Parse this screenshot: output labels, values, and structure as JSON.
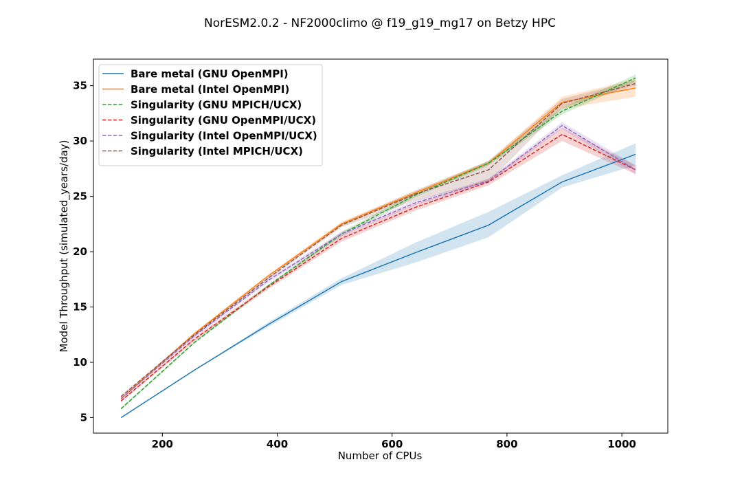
{
  "chart_data": {
    "type": "line",
    "title": "NorESM2.0.2 - NF2000climo @ f19_g19_mg17 on Betzy HPC",
    "xlabel": "Number of CPUs",
    "ylabel": "Model Throughput (simulated_years/day)",
    "xlim": [
      80,
      1080
    ],
    "ylim": [
      3.6,
      37.4
    ],
    "xticks": [
      200,
      400,
      600,
      800,
      1000
    ],
    "yticks": [
      5,
      10,
      15,
      20,
      25,
      30,
      35
    ],
    "grid": false,
    "legend_position": "upper-left",
    "x": [
      128,
      256,
      384,
      512,
      640,
      768,
      896,
      1024
    ],
    "series": [
      {
        "name": "Bare metal (GNU OpenMPI)",
        "color": "#1f77b4",
        "style": "solid",
        "values": [
          5.0,
          9.3,
          13.4,
          17.3,
          19.9,
          22.4,
          26.3,
          28.8
        ],
        "ci_low": [
          5.0,
          9.3,
          13.2,
          17.0,
          19.0,
          21.3,
          25.8,
          27.8
        ],
        "ci_high": [
          5.0,
          9.3,
          13.6,
          17.6,
          20.8,
          23.6,
          26.9,
          29.8
        ]
      },
      {
        "name": "Bare metal (Intel OpenMPI)",
        "color": "#ff7f0e",
        "style": "solid",
        "values": [
          6.7,
          12.6,
          17.8,
          22.5,
          25.3,
          28.0,
          33.5,
          34.8
        ],
        "ci_low": [
          6.6,
          12.5,
          17.7,
          22.3,
          25.1,
          27.8,
          32.9,
          34.0
        ],
        "ci_high": [
          6.8,
          12.7,
          17.9,
          22.7,
          25.5,
          28.2,
          34.0,
          35.6
        ]
      },
      {
        "name": "Singularity (GNU MPICH/UCX)",
        "color": "#2ca02c",
        "style": "dashed",
        "values": [
          5.8,
          11.8,
          16.9,
          21.6,
          25.1,
          28.0,
          32.7,
          35.7
        ],
        "ci_low": [
          5.7,
          11.7,
          16.8,
          21.4,
          24.9,
          27.8,
          32.4,
          35.4
        ],
        "ci_high": [
          5.9,
          11.9,
          17.0,
          21.8,
          25.3,
          28.2,
          33.0,
          36.0
        ]
      },
      {
        "name": "Singularity (GNU OpenMPI/UCX)",
        "color": "#d62728",
        "style": "dashed",
        "values": [
          6.5,
          12.1,
          16.8,
          21.2,
          24.0,
          26.3,
          30.6,
          27.4
        ],
        "ci_low": [
          6.4,
          11.9,
          16.6,
          20.9,
          23.7,
          26.0,
          30.0,
          27.0
        ],
        "ci_high": [
          6.6,
          12.3,
          17.0,
          21.5,
          24.3,
          26.6,
          31.2,
          27.8
        ]
      },
      {
        "name": "Singularity (Intel OpenMPI/UCX)",
        "color": "#9467bd",
        "style": "dashed",
        "values": [
          6.7,
          12.4,
          17.4,
          21.6,
          24.4,
          26.4,
          31.4,
          27.4
        ],
        "ci_low": [
          6.6,
          12.3,
          17.2,
          21.4,
          24.2,
          26.2,
          31.1,
          27.0
        ],
        "ci_high": [
          6.8,
          12.5,
          17.6,
          21.8,
          24.6,
          26.6,
          31.7,
          27.8
        ]
      },
      {
        "name": "Singularity (Intel MPICH/UCX)",
        "color": "#8c564b",
        "style": "dashed",
        "values": [
          6.9,
          12.5,
          17.6,
          22.4,
          25.2,
          27.4,
          33.4,
          35.2
        ],
        "ci_low": [
          6.8,
          12.4,
          17.5,
          22.2,
          24.6,
          26.3,
          33.0,
          35.0
        ],
        "ci_high": [
          7.0,
          12.6,
          17.7,
          22.6,
          25.5,
          28.2,
          33.8,
          35.5
        ]
      }
    ]
  }
}
